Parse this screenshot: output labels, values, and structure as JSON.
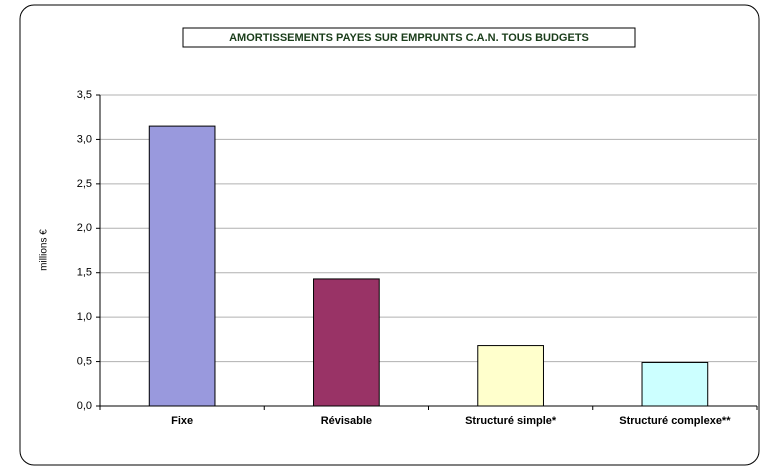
{
  "chart_data": {
    "type": "bar",
    "title": "AMORTISSEMENTS PAYES SUR EMPRUNTS  C.A.N. TOUS BUDGETS",
    "y_label": "millions €",
    "categories": [
      "Fixe",
      "Révisable",
      "Structuré simple*",
      "Structuré complexe**"
    ],
    "values": [
      3.15,
      1.43,
      0.68,
      0.49
    ],
    "colors": [
      "#9999dd",
      "#993366",
      "#ffffcc",
      "#ccffff"
    ],
    "ylim": [
      0,
      3.5
    ],
    "yticks": [
      {
        "value": 0,
        "label": "0,0"
      },
      {
        "value": 0.5,
        "label": "0,5"
      },
      {
        "value": 1,
        "label": "1,0"
      },
      {
        "value": 1.5,
        "label": "1,5"
      },
      {
        "value": 2,
        "label": "2,0"
      },
      {
        "value": 2.5,
        "label": "2,5"
      },
      {
        "value": 3,
        "label": "3,0"
      },
      {
        "value": 3.5,
        "label": "3,5"
      }
    ],
    "grid": true
  }
}
